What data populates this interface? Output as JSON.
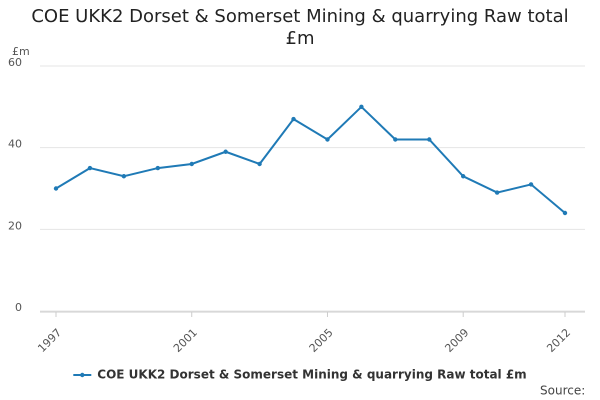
{
  "chart_data": {
    "type": "line",
    "title": "COE UKK2 Dorset & Somerset Mining & quarrying Raw total £m",
    "y_label": "£m",
    "source_label": "Source:",
    "x": [
      1997,
      1998,
      1999,
      2000,
      2001,
      2002,
      2003,
      2004,
      2005,
      2006,
      2007,
      2008,
      2009,
      2010,
      2011,
      2012
    ],
    "xlim": [
      1997,
      2012
    ],
    "xticks": [
      1997,
      2001,
      2005,
      2009,
      2012
    ],
    "series": [
      {
        "name": "COE UKK2 Dorset & Somerset Mining & quarrying Raw total £m",
        "color": "#1f7ab6",
        "values": [
          30,
          35,
          33,
          35,
          36,
          39,
          36,
          47,
          42,
          50,
          42,
          42,
          33,
          29,
          31,
          24
        ]
      }
    ],
    "ylim": [
      0,
      60
    ],
    "yticks": [
      0,
      20,
      40,
      60
    ],
    "grid": true
  }
}
